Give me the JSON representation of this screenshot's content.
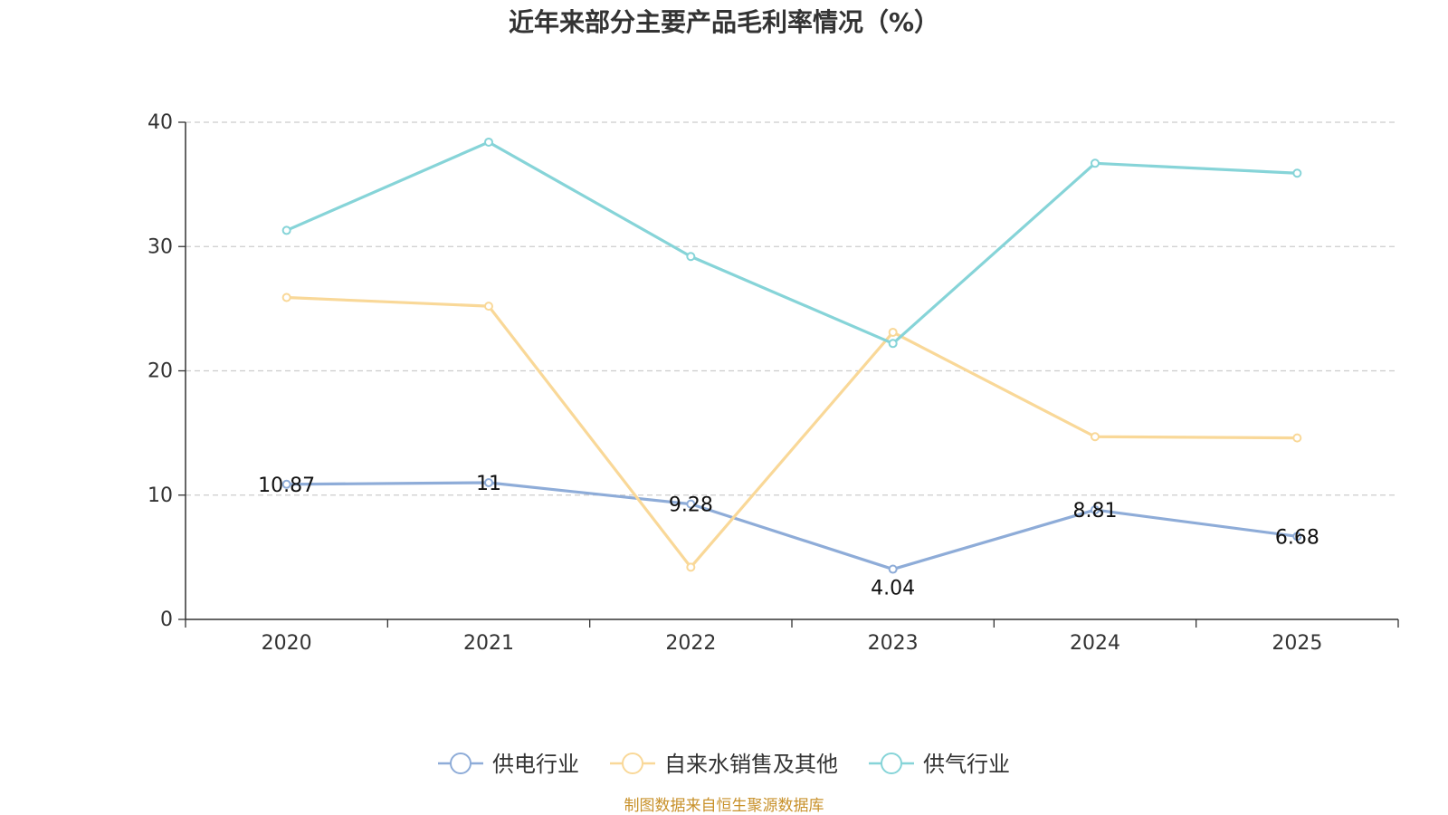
{
  "chart_data": {
    "type": "line",
    "title": "近年来部分主要产品毛利率情况（%）",
    "categories": [
      "2020",
      "2021",
      "2022",
      "2023",
      "2024",
      "2025"
    ],
    "ylim": [
      0,
      40
    ],
    "yticks": [
      "0",
      "10",
      "20",
      "30",
      "40"
    ],
    "grid": true,
    "legend_position": "bottom",
    "series": [
      {
        "name": "供电行业",
        "color": "#8eacd8",
        "values": [
          10.87,
          11,
          9.28,
          4.04,
          8.81,
          6.68
        ],
        "labels": [
          "10.87",
          "11",
          "9.28",
          "4.04",
          "8.81",
          "6.68"
        ],
        "show_labels": true
      },
      {
        "name": "自来水销售及其他",
        "color": "#f9d898",
        "values": [
          25.9,
          25.2,
          4.2,
          23.1,
          14.7,
          14.6
        ],
        "show_labels": false
      },
      {
        "name": "供气行业",
        "color": "#86d4d8",
        "values": [
          31.3,
          38.4,
          29.2,
          22.2,
          36.7,
          35.9
        ],
        "show_labels": false
      }
    ]
  },
  "source_note": "制图数据来自恒生聚源数据库"
}
